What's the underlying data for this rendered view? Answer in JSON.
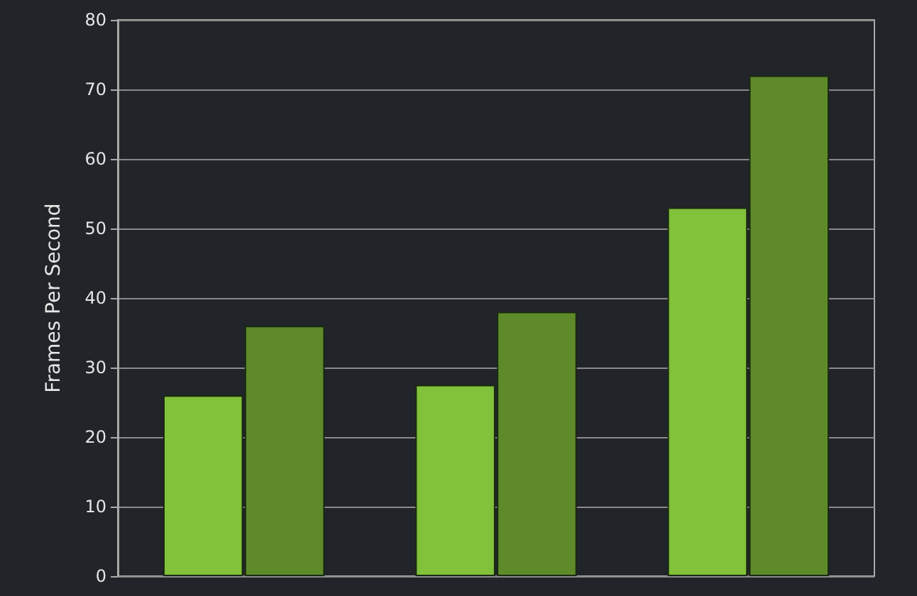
{
  "chart_data": {
    "type": "bar",
    "ylabel": "Frames Per Second",
    "categories": [
      null,
      null,
      null
    ],
    "series": [
      {
        "color": "#82c13a",
        "values": [
          26,
          27.5,
          53
        ]
      },
      {
        "color": "#5e8a2a",
        "values": [
          36,
          38,
          72
        ]
      }
    ],
    "ylim": [
      0,
      80
    ],
    "yticks": [
      0,
      10,
      20,
      30,
      40,
      50,
      60,
      70,
      80
    ],
    "grid": "y"
  }
}
